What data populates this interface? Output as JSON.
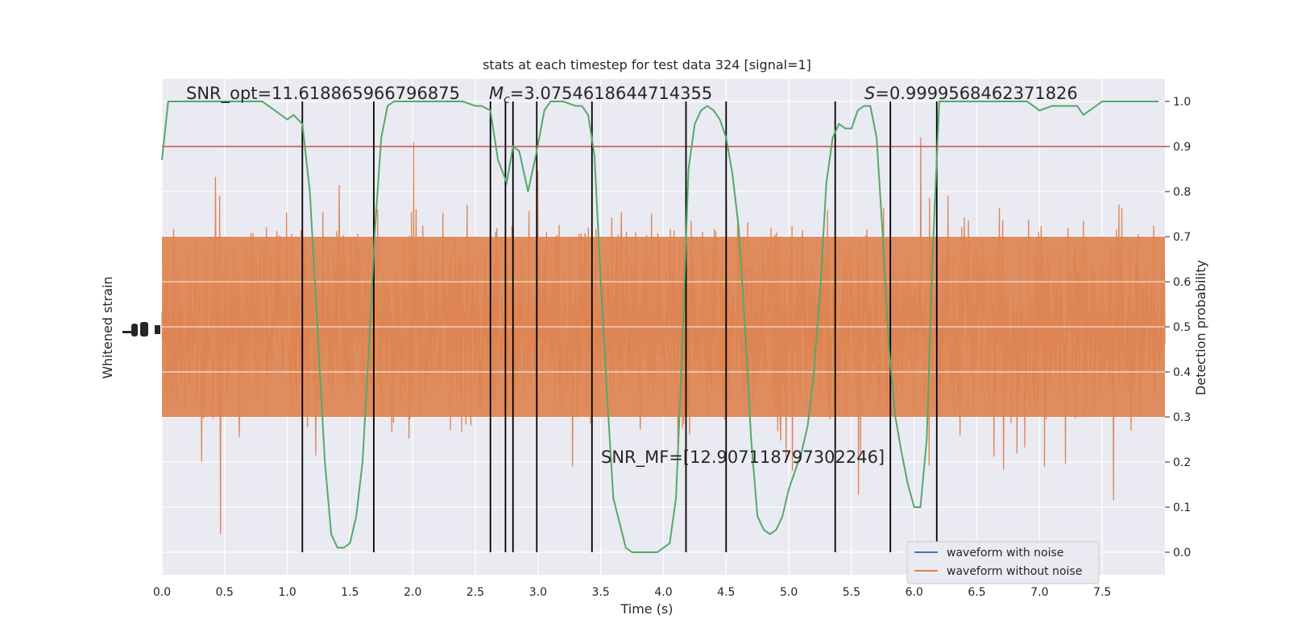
{
  "chart_data": {
    "type": "line",
    "title": "stats at each timestep for test data 324 [signal=1]",
    "xlabel": "Time (s)",
    "ylabel_left": "Whitened strain",
    "ylabel_right": "Detection probability",
    "xlim": [
      0,
      8
    ],
    "ylim_right": [
      -0.05,
      1.05
    ],
    "x_ticks": [
      "0.0",
      "0.5",
      "1.0",
      "1.5",
      "2.0",
      "2.5",
      "3.0",
      "3.5",
      "4.0",
      "4.5",
      "5.0",
      "5.5",
      "6.0",
      "6.5",
      "7.0",
      "7.5"
    ],
    "y_ticks_right": [
      "0.0",
      "0.1",
      "0.2",
      "0.3",
      "0.4",
      "0.5",
      "0.6",
      "0.7",
      "0.8",
      "0.9",
      "1.0"
    ],
    "grid": true,
    "threshold": 0.9,
    "annotations": {
      "snr_opt": "SNR_opt=11.618865966796875",
      "mc_prefix": "M",
      "mc_sub": "c",
      "mc_value": "=3.0754618644714355",
      "s_prefix": "S",
      "s_value": "=0.9999568462371826",
      "snr_mf": "SNR_MF=[12.907118797302246]"
    },
    "legend": {
      "placement": "lower-right",
      "entries": [
        {
          "label": "waveform with noise",
          "color": "#4c72b0"
        },
        {
          "label": "waveform without noise",
          "color": "#dd8452"
        }
      ]
    },
    "colors": {
      "background": "#eaeaf2",
      "grid": "#ffffff",
      "noise": "#dd8452",
      "probability": "#55a868",
      "threshold": "#c44e52",
      "markers": "#000000"
    },
    "vertical_markers_s": [
      1.12,
      1.69,
      2.62,
      2.74,
      2.8,
      2.99,
      3.43,
      4.18,
      4.5,
      5.37,
      5.81,
      6.18
    ],
    "series": [
      {
        "name": "Detection probability",
        "x": [
          0.0,
          0.05,
          0.1,
          0.2,
          0.3,
          0.4,
          0.5,
          0.6,
          0.7,
          0.8,
          0.85,
          0.9,
          1.0,
          1.05,
          1.12,
          1.18,
          1.25,
          1.3,
          1.35,
          1.4,
          1.45,
          1.5,
          1.55,
          1.6,
          1.65,
          1.7,
          1.75,
          1.8,
          1.85,
          1.9,
          2.0,
          2.1,
          2.2,
          2.3,
          2.4,
          2.5,
          2.55,
          2.62,
          2.68,
          2.75,
          2.8,
          2.85,
          2.92,
          2.99,
          3.05,
          3.1,
          3.2,
          3.3,
          3.35,
          3.4,
          3.45,
          3.5,
          3.55,
          3.6,
          3.7,
          3.75,
          3.8,
          3.9,
          3.95,
          4.0,
          4.05,
          4.1,
          4.15,
          4.2,
          4.25,
          4.3,
          4.35,
          4.4,
          4.45,
          4.5,
          4.55,
          4.6,
          4.65,
          4.7,
          4.75,
          4.8,
          4.85,
          4.9,
          4.95,
          5.0,
          5.05,
          5.1,
          5.15,
          5.2,
          5.25,
          5.3,
          5.35,
          5.4,
          5.45,
          5.5,
          5.55,
          5.6,
          5.65,
          5.7,
          5.75,
          5.8,
          5.85,
          5.9,
          5.95,
          6.0,
          6.05,
          6.1,
          6.15,
          6.2,
          6.25,
          6.3,
          6.4,
          6.5,
          6.6,
          6.7,
          6.8,
          6.9,
          7.0,
          7.1,
          7.2,
          7.3,
          7.35,
          7.4,
          7.5,
          7.6,
          7.7,
          7.8,
          7.9,
          7.95
        ],
        "y": [
          0.87,
          1.0,
          1.0,
          1.0,
          1.0,
          1.0,
          1.0,
          1.0,
          1.0,
          1.0,
          0.99,
          0.98,
          0.96,
          0.97,
          0.95,
          0.8,
          0.45,
          0.2,
          0.04,
          0.01,
          0.01,
          0.02,
          0.08,
          0.2,
          0.45,
          0.72,
          0.92,
          0.99,
          1.0,
          1.0,
          1.0,
          1.0,
          1.0,
          1.0,
          1.0,
          0.99,
          0.99,
          0.98,
          0.87,
          0.82,
          0.9,
          0.89,
          0.8,
          0.89,
          0.98,
          1.0,
          1.0,
          0.99,
          0.99,
          0.97,
          0.88,
          0.6,
          0.35,
          0.12,
          0.01,
          0.0,
          0.0,
          0.0,
          0.0,
          0.01,
          0.02,
          0.12,
          0.45,
          0.85,
          0.95,
          0.98,
          0.99,
          0.98,
          0.96,
          0.92,
          0.84,
          0.72,
          0.5,
          0.25,
          0.08,
          0.05,
          0.04,
          0.05,
          0.08,
          0.14,
          0.18,
          0.22,
          0.28,
          0.4,
          0.58,
          0.82,
          0.92,
          0.95,
          0.94,
          0.94,
          0.98,
          0.99,
          0.99,
          0.92,
          0.7,
          0.45,
          0.3,
          0.22,
          0.15,
          0.1,
          0.1,
          0.25,
          0.68,
          1.0,
          1.0,
          1.0,
          1.0,
          1.0,
          1.0,
          1.0,
          1.0,
          1.0,
          0.98,
          0.99,
          0.99,
          0.99,
          0.97,
          0.98,
          1.0,
          1.0,
          1.0,
          1.0,
          1.0,
          1.0
        ]
      },
      {
        "name": "waveform without noise",
        "values": "dense whitened-strain noise trace spanning the full time axis (0–8 s)"
      }
    ]
  }
}
